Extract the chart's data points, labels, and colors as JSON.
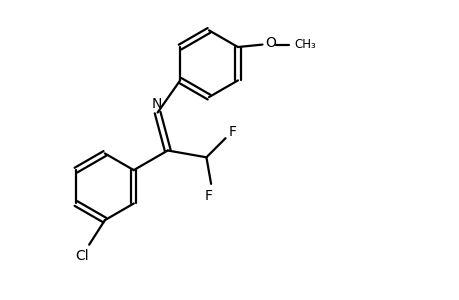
{
  "bg_color": "#ffffff",
  "line_color": "#000000",
  "line_width": 1.6,
  "font_size": 10,
  "figsize": [
    4.6,
    3.0
  ],
  "dpi": 100,
  "xlim": [
    0,
    9.2
  ],
  "ylim": [
    0,
    6.0
  ]
}
